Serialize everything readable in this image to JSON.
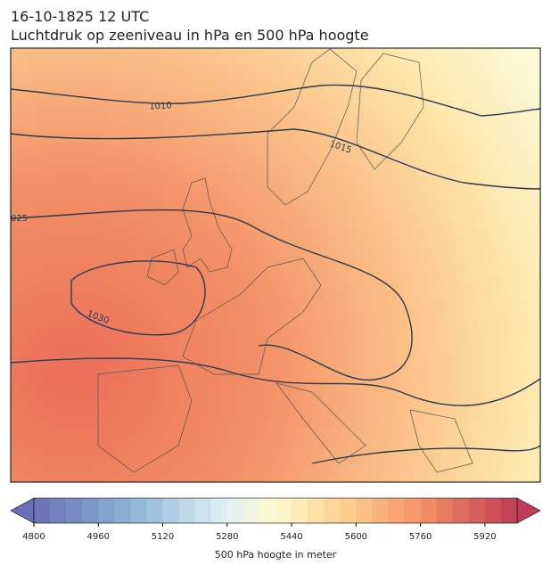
{
  "header": {
    "title": [
      "16-10-1825 12 UTC",
      "Luchtdruk op zeeniveau in hPa en 500 hPa hoogte"
    ]
  },
  "map": {
    "contour_labels": [
      "1010",
      "1015",
      "025",
      "1030"
    ]
  },
  "colorbar": {
    "label": "500 hPa hoogte in meter",
    "lim": [
      4800,
      6000
    ],
    "ticks": [
      4800,
      4960,
      5120,
      5280,
      5440,
      5600,
      5760,
      5920
    ],
    "levels": [
      4800,
      4840,
      4880,
      4920,
      4960,
      5000,
      5040,
      5080,
      5120,
      5160,
      5200,
      5240,
      5280,
      5320,
      5360,
      5400,
      5440,
      5480,
      5520,
      5560,
      5600,
      5640,
      5680,
      5720,
      5760,
      5800,
      5840,
      5880,
      5920,
      5960,
      6000
    ]
  }
}
